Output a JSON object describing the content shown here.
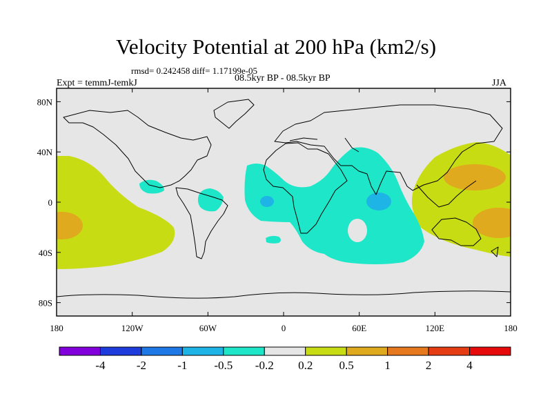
{
  "header": {
    "title": "Velocity Potential at 200 hPa (km2/s)",
    "stats": "rmsd= 0.242458  diff= 1.17199e-05",
    "period": "08.5kyr BP - 08.5kyr BP",
    "experiment": "Expt = temmJ-temkJ",
    "season": "JJA"
  },
  "map": {
    "lon_range": [
      -180,
      180
    ],
    "lat_range": [
      -90,
      90
    ],
    "x_ticks": [
      "180",
      "120W",
      "60W",
      "0",
      "60E",
      "120E",
      "180"
    ],
    "y_ticks": [
      "80N",
      "40N",
      "0",
      "40S",
      "80S"
    ],
    "background_color": "#e6e6e6",
    "regions": [
      {
        "name": "central-pacific-positive",
        "level": "0.2 to 0.5",
        "color": "#c8dc14"
      },
      {
        "name": "central-pacific-core",
        "level": "0.5 to 1",
        "color": "#e0aa1e"
      },
      {
        "name": "west-pacific-positive",
        "level": "0.2 to 0.5",
        "color": "#c8dc14"
      },
      {
        "name": "west-pacific-core-north",
        "level": "0.5 to 1",
        "color": "#e0aa1e"
      },
      {
        "name": "west-pacific-core-south",
        "level": "0.5 to 1",
        "color": "#e0aa1e"
      },
      {
        "name": "africa-indian-negative",
        "level": "-0.5 to -0.2",
        "color": "#1ee6c8"
      },
      {
        "name": "atlantic-core",
        "level": "-1 to -0.5",
        "color": "#1eb4e6"
      },
      {
        "name": "india-core",
        "level": "-1 to -0.5",
        "color": "#1eb4e6"
      },
      {
        "name": "central-america-negative",
        "level": "-0.5 to -0.2",
        "color": "#1ee6c8"
      },
      {
        "name": "south-america-negative",
        "level": "-0.5 to -0.2",
        "color": "#1ee6c8"
      },
      {
        "name": "south-atlantic-negative",
        "level": "-0.5 to -0.2",
        "color": "#1ee6c8"
      },
      {
        "name": "madagascar-gap",
        "level": "-0.2 to 0.2",
        "color": "#e6e6e6"
      }
    ]
  },
  "colorbar": {
    "colors": [
      "#8200dc",
      "#1e3cdc",
      "#1e78e6",
      "#1eb4e6",
      "#1ee6c8",
      "#e6e6e6",
      "#c8dc14",
      "#e0aa1e",
      "#e6781e",
      "#e63c14",
      "#e60a0a"
    ],
    "labels": [
      "-4",
      "-2",
      "-1",
      "-0.5",
      "-0.2",
      "0.2",
      "0.5",
      "1",
      "2",
      "4"
    ]
  }
}
